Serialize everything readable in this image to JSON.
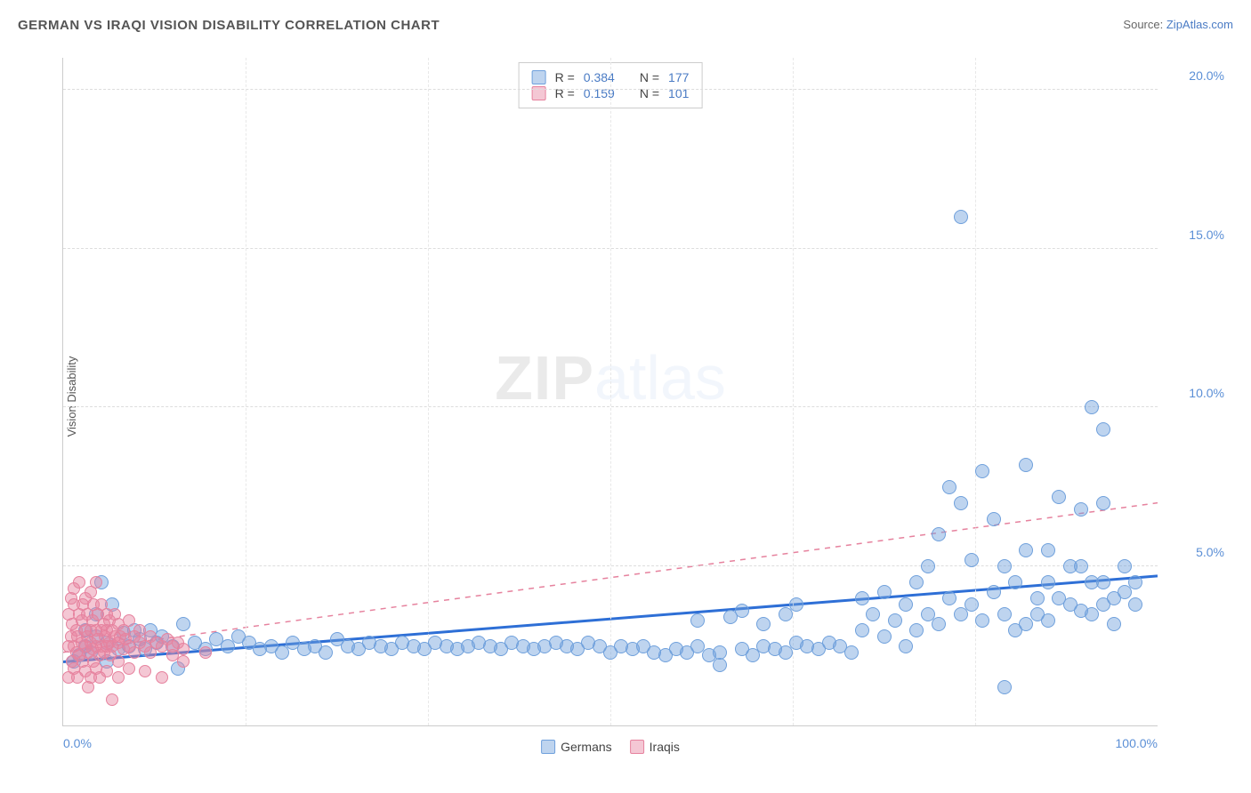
{
  "title": "GERMAN VS IRAQI VISION DISABILITY CORRELATION CHART",
  "source_label": "Source:",
  "source_name": "ZipAtlas.com",
  "ylabel": "Vision Disability",
  "watermark_a": "ZIP",
  "watermark_b": "atlas",
  "chart": {
    "type": "scatter",
    "xlim": [
      0,
      100
    ],
    "ylim": [
      0,
      21
    ],
    "yticks": [
      {
        "v": 5,
        "l": "5.0%"
      },
      {
        "v": 10,
        "l": "10.0%"
      },
      {
        "v": 15,
        "l": "15.0%"
      },
      {
        "v": 20,
        "l": "20.0%"
      }
    ],
    "xtick_left": "0.0%",
    "xtick_right": "100.0%",
    "vgrid": [
      16.67,
      33.33,
      50,
      66.67,
      83.33
    ],
    "background_color": "#ffffff",
    "grid_color": "#dddddd",
    "series": [
      {
        "name": "Germans",
        "fill": "rgba(110,160,220,0.45)",
        "stroke": "#6fa0dc",
        "marker_size": 16,
        "trend": {
          "color": "#2e6fd6",
          "width": 3,
          "dash": "none",
          "y0": 2.0,
          "y1": 4.7
        },
        "points": [
          [
            1,
            2.0
          ],
          [
            1.5,
            2.2
          ],
          [
            2,
            2.5
          ],
          [
            2,
            3.0
          ],
          [
            2.5,
            2.3
          ],
          [
            3,
            3.5
          ],
          [
            3,
            2.8
          ],
          [
            3.5,
            4.5
          ],
          [
            4,
            2.0
          ],
          [
            4,
            2.6
          ],
          [
            4.5,
            3.8
          ],
          [
            5,
            2.4
          ],
          [
            5.5,
            2.9
          ],
          [
            6,
            2.5
          ],
          [
            6.5,
            3.0
          ],
          [
            7,
            2.7
          ],
          [
            7.5,
            2.4
          ],
          [
            8,
            3.0
          ],
          [
            8.5,
            2.6
          ],
          [
            9,
            2.8
          ],
          [
            10,
            2.5
          ],
          [
            10.5,
            1.8
          ],
          [
            11,
            3.2
          ],
          [
            12,
            2.6
          ],
          [
            13,
            2.4
          ],
          [
            14,
            2.7
          ],
          [
            15,
            2.5
          ],
          [
            16,
            2.8
          ],
          [
            17,
            2.6
          ],
          [
            18,
            2.4
          ],
          [
            19,
            2.5
          ],
          [
            20,
            2.3
          ],
          [
            21,
            2.6
          ],
          [
            22,
            2.4
          ],
          [
            23,
            2.5
          ],
          [
            24,
            2.3
          ],
          [
            25,
            2.7
          ],
          [
            26,
            2.5
          ],
          [
            27,
            2.4
          ],
          [
            28,
            2.6
          ],
          [
            29,
            2.5
          ],
          [
            30,
            2.4
          ],
          [
            31,
            2.6
          ],
          [
            32,
            2.5
          ],
          [
            33,
            2.4
          ],
          [
            34,
            2.6
          ],
          [
            35,
            2.5
          ],
          [
            36,
            2.4
          ],
          [
            37,
            2.5
          ],
          [
            38,
            2.6
          ],
          [
            39,
            2.5
          ],
          [
            40,
            2.4
          ],
          [
            41,
            2.6
          ],
          [
            42,
            2.5
          ],
          [
            43,
            2.4
          ],
          [
            44,
            2.5
          ],
          [
            45,
            2.6
          ],
          [
            46,
            2.5
          ],
          [
            47,
            2.4
          ],
          [
            48,
            2.6
          ],
          [
            49,
            2.5
          ],
          [
            50,
            2.3
          ],
          [
            51,
            2.5
          ],
          [
            52,
            2.4
          ],
          [
            53,
            2.5
          ],
          [
            54,
            2.3
          ],
          [
            55,
            2.2
          ],
          [
            56,
            2.4
          ],
          [
            57,
            2.3
          ],
          [
            58,
            2.5
          ],
          [
            58,
            3.3
          ],
          [
            59,
            2.2
          ],
          [
            60,
            2.3
          ],
          [
            60,
            1.9
          ],
          [
            61,
            3.4
          ],
          [
            62,
            2.4
          ],
          [
            62,
            3.6
          ],
          [
            63,
            2.2
          ],
          [
            64,
            2.5
          ],
          [
            64,
            3.2
          ],
          [
            65,
            2.4
          ],
          [
            66,
            2.3
          ],
          [
            66,
            3.5
          ],
          [
            67,
            2.6
          ],
          [
            67,
            3.8
          ],
          [
            68,
            2.5
          ],
          [
            69,
            2.4
          ],
          [
            70,
            2.6
          ],
          [
            71,
            2.5
          ],
          [
            72,
            2.3
          ],
          [
            73,
            3.0
          ],
          [
            73,
            4.0
          ],
          [
            74,
            3.5
          ],
          [
            75,
            2.8
          ],
          [
            75,
            4.2
          ],
          [
            76,
            3.3
          ],
          [
            77,
            3.8
          ],
          [
            77,
            2.5
          ],
          [
            78,
            3.0
          ],
          [
            78,
            4.5
          ],
          [
            79,
            3.5
          ],
          [
            79,
            5.0
          ],
          [
            80,
            3.2
          ],
          [
            80,
            6.0
          ],
          [
            81,
            4.0
          ],
          [
            81,
            7.5
          ],
          [
            82,
            3.5
          ],
          [
            82,
            7.0
          ],
          [
            82,
            16.0
          ],
          [
            83,
            3.8
          ],
          [
            83,
            5.2
          ],
          [
            84,
            3.3
          ],
          [
            84,
            8.0
          ],
          [
            85,
            4.2
          ],
          [
            85,
            6.5
          ],
          [
            86,
            3.5
          ],
          [
            86,
            5.0
          ],
          [
            86,
            1.2
          ],
          [
            87,
            4.5
          ],
          [
            87,
            3.0
          ],
          [
            88,
            5.5
          ],
          [
            88,
            3.2
          ],
          [
            88,
            8.2
          ],
          [
            89,
            4.0
          ],
          [
            89,
            3.5
          ],
          [
            90,
            4.5
          ],
          [
            90,
            5.5
          ],
          [
            90,
            3.3
          ],
          [
            91,
            4.0
          ],
          [
            91,
            7.2
          ],
          [
            92,
            3.8
          ],
          [
            92,
            5.0
          ],
          [
            93,
            5.0
          ],
          [
            93,
            3.6
          ],
          [
            93,
            6.8
          ],
          [
            94,
            3.5
          ],
          [
            94,
            4.5
          ],
          [
            94,
            10.0
          ],
          [
            95,
            4.5
          ],
          [
            95,
            3.8
          ],
          [
            95,
            7.0
          ],
          [
            95,
            9.3
          ],
          [
            96,
            4.0
          ],
          [
            96,
            3.2
          ],
          [
            97,
            4.2
          ],
          [
            97,
            5.0
          ],
          [
            98,
            3.8
          ],
          [
            98,
            4.5
          ]
        ]
      },
      {
        "name": "Iraqis",
        "fill": "rgba(230,130,160,0.45)",
        "stroke": "#e6829e",
        "marker_size": 14,
        "trend": {
          "color": "#e6829e",
          "width": 1.5,
          "dash": "6,6",
          "y0": 2.3,
          "y1": 7.0
        },
        "points": [
          [
            0.5,
            2.5
          ],
          [
            0.5,
            3.5
          ],
          [
            0.5,
            1.5
          ],
          [
            0.7,
            2.8
          ],
          [
            0.7,
            4.0
          ],
          [
            0.8,
            2.0
          ],
          [
            0.8,
            3.2
          ],
          [
            1,
            2.5
          ],
          [
            1,
            3.8
          ],
          [
            1,
            1.8
          ],
          [
            1,
            4.3
          ],
          [
            1.2,
            2.3
          ],
          [
            1.2,
            3.0
          ],
          [
            1.3,
            2.8
          ],
          [
            1.3,
            1.5
          ],
          [
            1.5,
            3.5
          ],
          [
            1.5,
            2.2
          ],
          [
            1.5,
            4.5
          ],
          [
            1.7,
            2.6
          ],
          [
            1.7,
            3.3
          ],
          [
            1.8,
            2.0
          ],
          [
            1.8,
            3.8
          ],
          [
            2,
            2.5
          ],
          [
            2,
            3.0
          ],
          [
            2,
            1.7
          ],
          [
            2,
            4.0
          ],
          [
            2.2,
            2.8
          ],
          [
            2.2,
            3.5
          ],
          [
            2.3,
            2.3
          ],
          [
            2.3,
            1.2
          ],
          [
            2.5,
            3.0
          ],
          [
            2.5,
            2.6
          ],
          [
            2.5,
            4.2
          ],
          [
            2.5,
            1.5
          ],
          [
            2.7,
            2.4
          ],
          [
            2.7,
            3.3
          ],
          [
            2.8,
            2.0
          ],
          [
            2.8,
            3.8
          ],
          [
            3,
            2.5
          ],
          [
            3,
            3.0
          ],
          [
            3,
            1.8
          ],
          [
            3,
            4.5
          ],
          [
            3.2,
            2.7
          ],
          [
            3.2,
            3.5
          ],
          [
            3.3,
            2.2
          ],
          [
            3.3,
            1.5
          ],
          [
            3.5,
            3.0
          ],
          [
            3.5,
            2.5
          ],
          [
            3.5,
            3.8
          ],
          [
            3.7,
            2.3
          ],
          [
            3.7,
            3.2
          ],
          [
            3.8,
            2.8
          ],
          [
            4,
            2.5
          ],
          [
            4,
            3.5
          ],
          [
            4,
            1.7
          ],
          [
            4,
            3.0
          ],
          [
            4.2,
            2.6
          ],
          [
            4.2,
            3.3
          ],
          [
            4.3,
            2.2
          ],
          [
            4.5,
            3.0
          ],
          [
            4.5,
            2.5
          ],
          [
            4.5,
            0.8
          ],
          [
            4.7,
            2.8
          ],
          [
            4.7,
            3.5
          ],
          [
            5,
            2.6
          ],
          [
            5,
            3.2
          ],
          [
            5,
            1.5
          ],
          [
            5,
            2.0
          ],
          [
            5.2,
            2.8
          ],
          [
            5.5,
            3.0
          ],
          [
            5.5,
            2.4
          ],
          [
            5.7,
            2.7
          ],
          [
            6,
            2.5
          ],
          [
            6,
            3.3
          ],
          [
            6,
            1.8
          ],
          [
            6.5,
            2.8
          ],
          [
            6.5,
            2.3
          ],
          [
            7,
            2.6
          ],
          [
            7,
            3.0
          ],
          [
            7.5,
            2.5
          ],
          [
            7.5,
            1.7
          ],
          [
            8,
            2.8
          ],
          [
            8,
            2.3
          ],
          [
            8.5,
            2.6
          ],
          [
            9,
            2.5
          ],
          [
            9,
            1.5
          ],
          [
            9.5,
            2.7
          ],
          [
            10,
            2.5
          ],
          [
            10,
            2.2
          ],
          [
            10.5,
            2.6
          ],
          [
            11,
            2.4
          ],
          [
            11,
            2.0
          ],
          [
            13,
            2.3
          ]
        ]
      }
    ],
    "legend_top": [
      {
        "swatch_fill": "rgba(110,160,220,0.45)",
        "swatch_stroke": "#6fa0dc",
        "r_lbl": "R =",
        "r": "0.384",
        "n_lbl": "N =",
        "n": "177"
      },
      {
        "swatch_fill": "rgba(230,130,160,0.45)",
        "swatch_stroke": "#e6829e",
        "r_lbl": "R =",
        "r": "0.159",
        "n_lbl": "N =",
        "n": "101"
      }
    ],
    "legend_bottom": [
      {
        "swatch_fill": "rgba(110,160,220,0.45)",
        "swatch_stroke": "#6fa0dc",
        "label": "Germans"
      },
      {
        "swatch_fill": "rgba(230,130,160,0.45)",
        "swatch_stroke": "#e6829e",
        "label": "Iraqis"
      }
    ]
  }
}
